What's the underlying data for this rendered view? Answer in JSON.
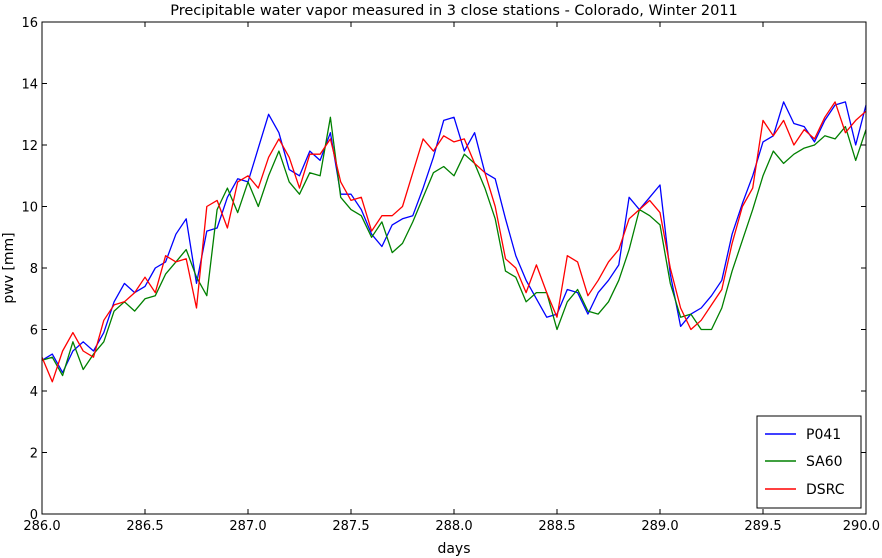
{
  "chart_data": {
    "type": "line",
    "title": "Precipitable water vapor measured in 3 close stations - Colorado, Winter 2011",
    "xlabel": "days",
    "ylabel": "pwv [mm]",
    "xlim": [
      286.0,
      290.0
    ],
    "ylim": [
      0,
      16
    ],
    "xticks": [
      286.0,
      286.5,
      287.0,
      287.5,
      288.0,
      288.5,
      289.0,
      289.5,
      290.0
    ],
    "xtick_labels": [
      "286.0",
      "286.5",
      "287.0",
      "287.5",
      "288.0",
      "288.5",
      "289.0",
      "289.5",
      "290.0"
    ],
    "yticks": [
      0,
      2,
      4,
      6,
      8,
      10,
      12,
      14,
      16
    ],
    "ytick_labels": [
      "0",
      "2",
      "4",
      "6",
      "8",
      "10",
      "12",
      "14",
      "16"
    ],
    "grid": false,
    "legend_position": "bottom-right",
    "series": [
      {
        "name": "P041",
        "color": "#0000ff",
        "x": [
          286.0,
          286.05,
          286.1,
          286.15,
          286.2,
          286.25,
          286.3,
          286.35,
          286.4,
          286.45,
          286.5,
          286.55,
          286.6,
          286.65,
          286.7,
          286.75,
          286.8,
          286.85,
          286.9,
          286.95,
          287.0,
          287.05,
          287.1,
          287.15,
          287.2,
          287.25,
          287.3,
          287.35,
          287.4,
          287.45,
          287.5,
          287.55,
          287.6,
          287.65,
          287.7,
          287.75,
          287.8,
          287.85,
          287.9,
          287.95,
          288.0,
          288.05,
          288.1,
          288.15,
          288.2,
          288.25,
          288.3,
          288.35,
          288.4,
          288.45,
          288.5,
          288.55,
          288.6,
          288.65,
          288.7,
          288.75,
          288.8,
          288.85,
          288.9,
          288.95,
          289.0,
          289.05,
          289.1,
          289.15,
          289.2,
          289.25,
          289.3,
          289.35,
          289.4,
          289.45,
          289.5,
          289.55,
          289.6,
          289.65,
          289.7,
          289.75,
          289.8,
          289.85,
          289.9,
          289.95,
          290.0
        ],
        "values": [
          5.0,
          5.2,
          4.6,
          5.3,
          5.6,
          5.3,
          5.9,
          6.9,
          7.5,
          7.2,
          7.4,
          8.0,
          8.2,
          9.1,
          9.6,
          7.5,
          9.2,
          9.3,
          10.3,
          10.9,
          10.8,
          11.9,
          13.0,
          12.4,
          11.2,
          11.0,
          11.8,
          11.5,
          12.4,
          10.4,
          10.4,
          9.9,
          9.1,
          8.7,
          9.4,
          9.6,
          9.7,
          10.6,
          11.6,
          12.8,
          12.9,
          11.8,
          12.4,
          11.1,
          10.9,
          9.6,
          8.4,
          7.6,
          7.0,
          6.4,
          6.5,
          7.3,
          7.2,
          6.5,
          7.2,
          7.6,
          8.1,
          10.3,
          9.9,
          10.3,
          10.7,
          7.8,
          6.1,
          6.5,
          6.7,
          7.1,
          7.6,
          9.1,
          10.1,
          11.0,
          12.1,
          12.3,
          13.4,
          12.7,
          12.6,
          12.1,
          12.8,
          13.3,
          13.4,
          12.0,
          13.3
        ]
      },
      {
        "name": "SA60",
        "color": "#008000",
        "x": [
          286.0,
          286.05,
          286.1,
          286.15,
          286.2,
          286.25,
          286.3,
          286.35,
          286.4,
          286.45,
          286.5,
          286.55,
          286.6,
          286.65,
          286.7,
          286.75,
          286.8,
          286.85,
          286.9,
          286.95,
          287.0,
          287.05,
          287.1,
          287.15,
          287.2,
          287.25,
          287.3,
          287.35,
          287.4,
          287.45,
          287.5,
          287.55,
          287.6,
          287.65,
          287.7,
          287.75,
          287.8,
          287.85,
          287.9,
          287.95,
          288.0,
          288.05,
          288.1,
          288.15,
          288.2,
          288.25,
          288.3,
          288.35,
          288.4,
          288.45,
          288.5,
          288.55,
          288.6,
          288.65,
          288.7,
          288.75,
          288.8,
          288.85,
          288.9,
          288.95,
          289.0,
          289.05,
          289.1,
          289.15,
          289.2,
          289.25,
          289.3,
          289.35,
          289.4,
          289.45,
          289.5,
          289.55,
          289.6,
          289.65,
          289.7,
          289.75,
          289.8,
          289.85,
          289.9,
          289.95,
          290.0
        ],
        "values": [
          5.0,
          5.1,
          4.5,
          5.6,
          4.7,
          5.2,
          5.6,
          6.6,
          6.9,
          6.6,
          7.0,
          7.1,
          7.8,
          8.2,
          8.6,
          7.7,
          7.1,
          9.9,
          10.6,
          9.8,
          10.8,
          10.0,
          11.0,
          11.8,
          10.8,
          10.4,
          11.1,
          11.0,
          12.9,
          10.3,
          9.9,
          9.7,
          9.0,
          9.5,
          8.5,
          8.8,
          9.5,
          10.3,
          11.1,
          11.3,
          11.0,
          11.7,
          11.4,
          10.6,
          9.6,
          7.9,
          7.7,
          6.9,
          7.2,
          7.2,
          6.0,
          6.9,
          7.3,
          6.6,
          6.5,
          6.9,
          7.6,
          8.6,
          9.9,
          9.7,
          9.4,
          7.5,
          6.4,
          6.5,
          6.0,
          6.0,
          6.7,
          7.9,
          8.9,
          9.9,
          11.0,
          11.8,
          11.4,
          11.7,
          11.9,
          12.0,
          12.3,
          12.2,
          12.6,
          11.5,
          12.5
        ]
      },
      {
        "name": "DSRC",
        "color": "#ff0000",
        "x": [
          286.0,
          286.05,
          286.1,
          286.15,
          286.2,
          286.25,
          286.3,
          286.35,
          286.4,
          286.45,
          286.5,
          286.55,
          286.6,
          286.65,
          286.7,
          286.75,
          286.8,
          286.85,
          286.9,
          286.95,
          287.0,
          287.05,
          287.1,
          287.15,
          287.2,
          287.25,
          287.3,
          287.35,
          287.4,
          287.45,
          287.5,
          287.55,
          287.6,
          287.65,
          287.7,
          287.75,
          287.8,
          287.85,
          287.9,
          287.95,
          288.0,
          288.05,
          288.1,
          288.15,
          288.2,
          288.25,
          288.3,
          288.35,
          288.4,
          288.45,
          288.5,
          288.55,
          288.6,
          288.65,
          288.7,
          288.75,
          288.8,
          288.85,
          288.9,
          288.95,
          289.0,
          289.05,
          289.1,
          289.15,
          289.2,
          289.25,
          289.3,
          289.35,
          289.4,
          289.45,
          289.5,
          289.55,
          289.6,
          289.65,
          289.7,
          289.75,
          289.8,
          289.85,
          289.9,
          289.95,
          290.0
        ],
        "values": [
          5.1,
          4.3,
          5.3,
          5.9,
          5.3,
          5.1,
          6.3,
          6.8,
          6.9,
          7.2,
          7.7,
          7.2,
          8.4,
          8.2,
          8.3,
          6.7,
          10.0,
          10.2,
          9.3,
          10.8,
          11.0,
          10.6,
          11.6,
          12.2,
          11.6,
          10.6,
          11.7,
          11.7,
          12.2,
          10.8,
          10.2,
          10.3,
          9.2,
          9.7,
          9.7,
          10.0,
          11.1,
          12.2,
          11.8,
          12.3,
          12.1,
          12.2,
          11.4,
          11.1,
          10.0,
          8.3,
          8.0,
          7.2,
          8.1,
          7.2,
          6.4,
          8.4,
          8.2,
          7.1,
          7.6,
          8.2,
          8.6,
          9.6,
          9.9,
          10.2,
          9.8,
          8.0,
          6.7,
          6.0,
          6.3,
          6.8,
          7.3,
          8.8,
          10.0,
          10.6,
          12.8,
          12.3,
          12.8,
          12.0,
          12.5,
          12.2,
          12.9,
          13.4,
          12.4,
          12.8,
          13.1
        ]
      }
    ]
  }
}
